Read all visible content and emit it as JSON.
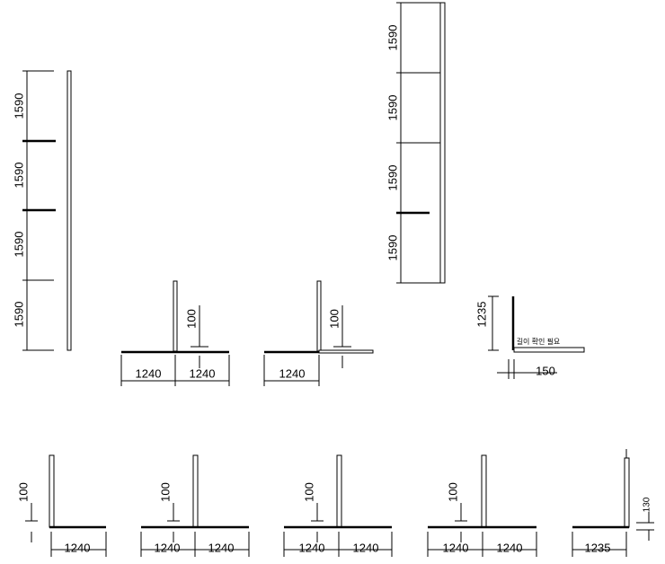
{
  "left_column": {
    "dims": [
      1590,
      1590,
      1590,
      1590
    ]
  },
  "right_column": {
    "dims": [
      1590,
      1590,
      1590,
      1590
    ]
  },
  "detail_1": {
    "height": 100,
    "widths": [
      1240,
      1240
    ]
  },
  "detail_2": {
    "height": 100,
    "widths": [
      1240
    ]
  },
  "corner_detail": {
    "height": 1235,
    "width": 150,
    "note": "길이 확인 필요"
  },
  "bottom_details": [
    {
      "height": 100,
      "widths": [
        1240
      ]
    },
    {
      "height": 100,
      "widths": [
        1240,
        1240
      ]
    },
    {
      "height": 100,
      "widths": [
        1240,
        1240
      ]
    },
    {
      "height": 100,
      "widths": [
        1240,
        1240
      ]
    },
    {
      "height": 130,
      "widths": [
        1235
      ]
    }
  ]
}
